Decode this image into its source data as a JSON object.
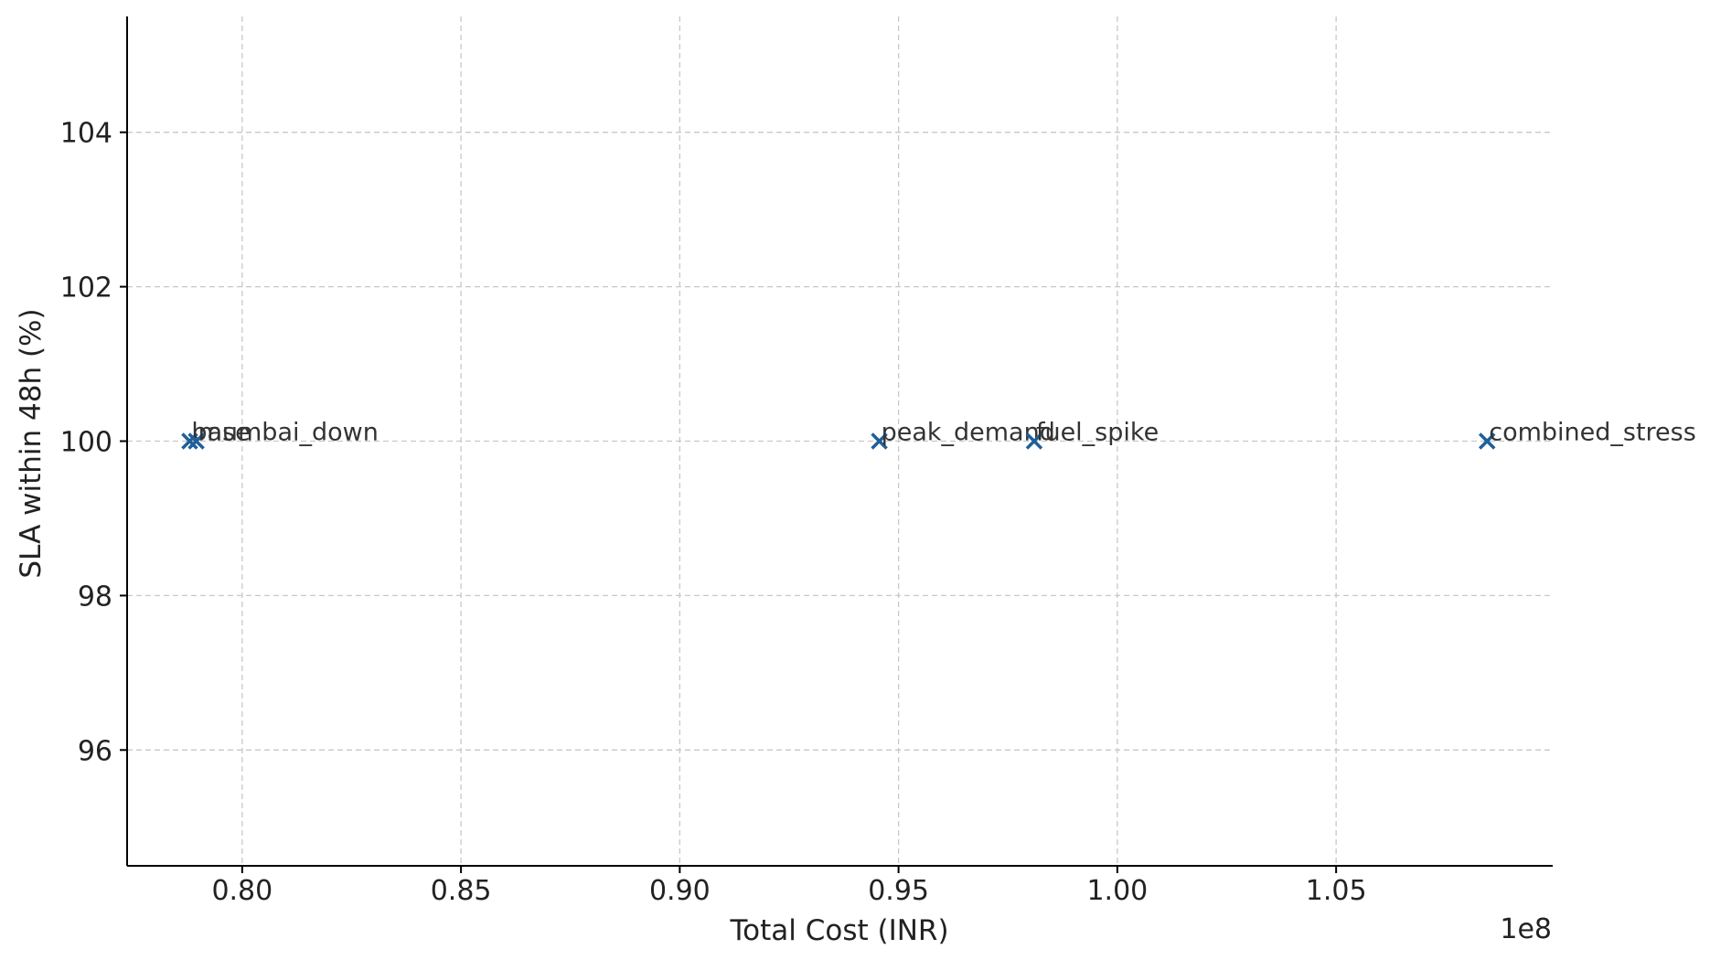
{
  "chart_data": {
    "type": "scatter",
    "title": "",
    "xlabel": "Total Cost (INR)",
    "ylabel": "SLA within 48h (%)",
    "x_offset_label": "1e8",
    "xlim": [
      0.7737,
      1.0995
    ],
    "ylim": [
      94.5,
      105.5
    ],
    "x_ticks": [
      0.8,
      0.85,
      0.9,
      0.95,
      1.0,
      1.05
    ],
    "x_tick_labels": [
      "0.80",
      "0.85",
      "0.90",
      "0.95",
      "1.00",
      "1.05"
    ],
    "y_ticks": [
      96,
      98,
      100,
      102,
      104
    ],
    "y_tick_labels": [
      "96",
      "98",
      "100",
      "102",
      "104"
    ],
    "grid": true,
    "marker": "x",
    "marker_color": "#1f5f9a",
    "points": [
      {
        "label": "base",
        "x": 0.788,
        "y": 100
      },
      {
        "label": "mumbai_down",
        "x": 0.7895,
        "y": 100
      },
      {
        "label": "peak_demand",
        "x": 0.9456,
        "y": 100
      },
      {
        "label": "fuel_spike",
        "x": 0.981,
        "y": 100
      },
      {
        "label": "combined_stress",
        "x": 1.0845,
        "y": 100
      }
    ]
  }
}
